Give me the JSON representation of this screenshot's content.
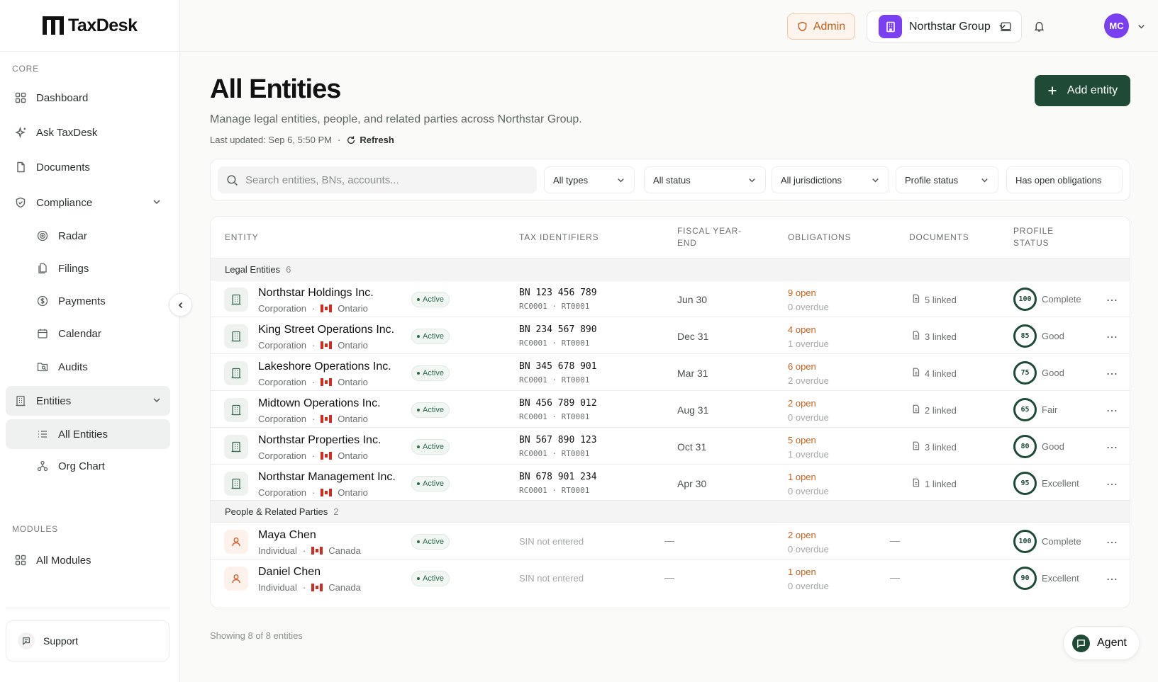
{
  "brand": {
    "name": "TaxDesk"
  },
  "sidebar": {
    "core_label": "CORE",
    "modules_label": "MODULES",
    "items": {
      "dashboard": "Dashboard",
      "ask": "Ask TaxDesk",
      "documents": "Documents",
      "compliance": "Compliance",
      "radar": "Radar",
      "filings": "Filings",
      "payments": "Payments",
      "calendar": "Calendar",
      "audits": "Audits",
      "entities": "Entities",
      "all_entities": "All Entities",
      "org_chart": "Org Chart",
      "all_modules": "All Modules"
    },
    "support": "Support"
  },
  "header": {
    "admin": "Admin",
    "org": "Northstar Group",
    "avatar": "MC"
  },
  "page": {
    "title": "All Entities",
    "subtitle": "Manage legal entities, people, and related parties across Northstar Group.",
    "updated": "Last updated: Sep 6, 5:50 PM",
    "separator": "·",
    "refresh": "Refresh",
    "add_button": "Add entity"
  },
  "filters": {
    "search_placeholder": "Search entities, BNs, accounts...",
    "types": "All types",
    "status": "All status",
    "jurisdictions": "All jurisdictions",
    "profile": "Profile status",
    "obligations": "Has open obligations"
  },
  "table": {
    "headers": {
      "entity": "ENTITY",
      "tax": "TAX IDENTIFIERS",
      "fye_1": "FISCAL YEAR-",
      "fye_2": "END",
      "obligations": "OBLIGATIONS",
      "documents": "DOCUMENTS",
      "profile_1": "PROFILE",
      "profile_2": "STATUS"
    },
    "groups": {
      "legal": {
        "label": "Legal Entities",
        "count": "6"
      },
      "people": {
        "label": "People & Related Parties",
        "count": "2"
      }
    },
    "dot": "·",
    "status_active": "Active",
    "dash": "—",
    "rows": [
      {
        "name": "Northstar Holdings Inc.",
        "type": "Corporation",
        "region": "Ontario",
        "bn": "BN 123 456 789",
        "rc": "RC0001 · RT0001",
        "fye": "Jun 30",
        "open": "9 open",
        "overdue": "0 overdue",
        "docs": "5 linked",
        "score": "100",
        "label": "Complete"
      },
      {
        "name": "King Street Operations Inc.",
        "type": "Corporation",
        "region": "Ontario",
        "bn": "BN 234 567 890",
        "rc": "RC0001 · RT0001",
        "fye": "Dec 31",
        "open": "4 open",
        "overdue": "1 overdue",
        "docs": "3 linked",
        "score": "85",
        "label": "Good"
      },
      {
        "name": "Lakeshore Operations Inc.",
        "type": "Corporation",
        "region": "Ontario",
        "bn": "BN 345 678 901",
        "rc": "RC0001 · RT0001",
        "fye": "Mar 31",
        "open": "6 open",
        "overdue": "2 overdue",
        "docs": "4 linked",
        "score": "75",
        "label": "Good"
      },
      {
        "name": "Midtown Operations Inc.",
        "type": "Corporation",
        "region": "Ontario",
        "bn": "BN 456 789 012",
        "rc": "RC0001 · RT0001",
        "fye": "Aug 31",
        "open": "2 open",
        "overdue": "0 overdue",
        "docs": "2 linked",
        "score": "65",
        "label": "Fair"
      },
      {
        "name": "Northstar Properties Inc.",
        "type": "Corporation",
        "region": "Ontario",
        "bn": "BN 567 890 123",
        "rc": "RC0001 · RT0001",
        "fye": "Oct 31",
        "open": "5 open",
        "overdue": "1 overdue",
        "docs": "3 linked",
        "score": "80",
        "label": "Good"
      },
      {
        "name": "Northstar Management Inc.",
        "type": "Corporation",
        "region": "Ontario",
        "bn": "BN 678 901 234",
        "rc": "RC0001 · RT0001",
        "fye": "Apr 30",
        "open": "1 open",
        "overdue": "0 overdue",
        "docs": "1 linked",
        "score": "95",
        "label": "Excellent"
      }
    ],
    "people": [
      {
        "name": "Maya Chen",
        "type": "Individual",
        "region": "Canada",
        "sin": "SIN not entered",
        "open": "2 open",
        "overdue": "0 overdue",
        "score": "100",
        "label": "Complete"
      },
      {
        "name": "Daniel Chen",
        "type": "Individual",
        "region": "Canada",
        "sin": "SIN not entered",
        "open": "1 open",
        "overdue": "0 overdue",
        "score": "90",
        "label": "Excellent"
      }
    ]
  },
  "footer": {
    "showing": "Showing 8 of 8 entities",
    "agent": "Agent"
  },
  "colors": {
    "accent": "#1f4a36",
    "warning": "#c9611d",
    "brand_purple": "#7b3ff2"
  }
}
